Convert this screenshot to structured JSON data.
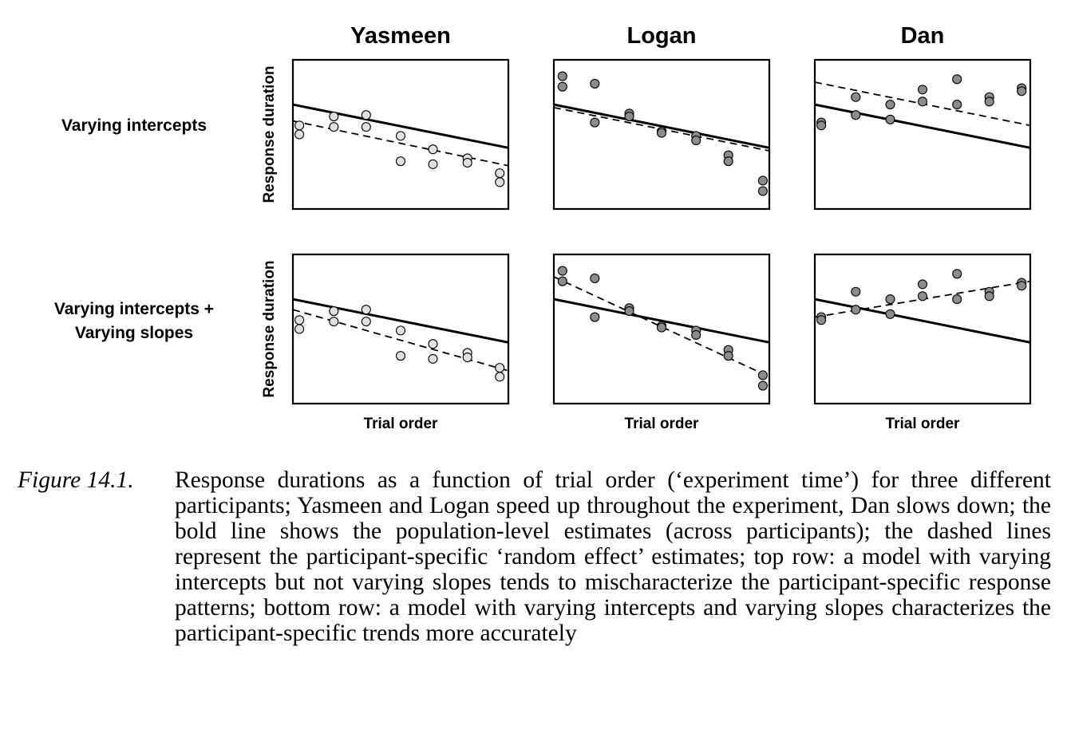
{
  "figure": {
    "columns": [
      "Yasmeen",
      "Logan",
      "Dan"
    ],
    "rows": [
      {
        "label_lines": [
          "Varying intercepts"
        ]
      },
      {
        "label_lines": [
          "Varying intercepts +",
          "Varying slopes"
        ]
      }
    ],
    "ylabel": "Response duration",
    "xlabel": "Trial order"
  },
  "caption": {
    "number": "Figure 14.1.",
    "text": "Response durations as a function of trial order (‘experiment time’) for three different participants; Yasmeen and Logan speed up throughout the experiment, Dan slows down; the bold line shows the population-level estimates (across participants); the dashed lines represent the participant-specific ‘random effect’ estimates; top row: a model with varying intercepts but not varying slopes tends to mischaracterize the participant-specific response patterns; bottom row: a model with varying intercepts and varying slopes characterizes the participant-specific trends more accurately"
  },
  "colors": {
    "Yasmeen": "#e0e0e0",
    "Logan": "#8c8c8c",
    "Dan": "#8c8c8c"
  },
  "chart_data": {
    "type": "scatter",
    "xlabel": "Trial order",
    "ylabel": "Response duration",
    "xlim": [
      0,
      1
    ],
    "ylim": [
      0,
      1
    ],
    "grid": false,
    "population_line": [
      [
        0,
        0.7
      ],
      [
        1,
        0.41
      ]
    ],
    "participants": {
      "Yasmeen": [
        [
          0.03,
          0.56
        ],
        [
          0.03,
          0.5
        ],
        [
          0.19,
          0.62
        ],
        [
          0.19,
          0.55
        ],
        [
          0.34,
          0.63
        ],
        [
          0.34,
          0.55
        ],
        [
          0.5,
          0.49
        ],
        [
          0.5,
          0.32
        ],
        [
          0.65,
          0.4
        ],
        [
          0.65,
          0.3
        ],
        [
          0.81,
          0.34
        ],
        [
          0.81,
          0.31
        ],
        [
          0.96,
          0.24
        ],
        [
          0.96,
          0.18
        ]
      ],
      "Logan": [
        [
          0.04,
          0.89
        ],
        [
          0.04,
          0.82
        ],
        [
          0.19,
          0.84
        ],
        [
          0.19,
          0.58
        ],
        [
          0.35,
          0.64
        ],
        [
          0.35,
          0.62
        ],
        [
          0.5,
          0.52
        ],
        [
          0.5,
          0.51
        ],
        [
          0.66,
          0.49
        ],
        [
          0.66,
          0.46
        ],
        [
          0.81,
          0.36
        ],
        [
          0.81,
          0.32
        ],
        [
          0.97,
          0.19
        ],
        [
          0.97,
          0.12
        ]
      ],
      "Dan": [
        [
          0.03,
          0.58
        ],
        [
          0.03,
          0.56
        ],
        [
          0.19,
          0.75
        ],
        [
          0.19,
          0.63
        ],
        [
          0.35,
          0.7
        ],
        [
          0.35,
          0.6
        ],
        [
          0.5,
          0.8
        ],
        [
          0.5,
          0.72
        ],
        [
          0.66,
          0.87
        ],
        [
          0.66,
          0.7
        ],
        [
          0.81,
          0.75
        ],
        [
          0.81,
          0.72
        ],
        [
          0.96,
          0.81
        ],
        [
          0.96,
          0.79
        ]
      ]
    },
    "panels": [
      {
        "row": "Varying intercepts",
        "participant": "Yasmeen",
        "dashed_line": [
          [
            0,
            0.59
          ],
          [
            1,
            0.29
          ]
        ]
      },
      {
        "row": "Varying intercepts",
        "participant": "Logan",
        "dashed_line": [
          [
            0,
            0.68
          ],
          [
            1,
            0.39
          ]
        ]
      },
      {
        "row": "Varying intercepts",
        "participant": "Dan",
        "dashed_line": [
          [
            0,
            0.85
          ],
          [
            1,
            0.56
          ]
        ]
      },
      {
        "row": "Varying intercepts + Varying slopes",
        "participant": "Yasmeen",
        "dashed_line": [
          [
            0,
            0.63
          ],
          [
            1,
            0.22
          ]
        ]
      },
      {
        "row": "Varying intercepts + Varying slopes",
        "participant": "Logan",
        "dashed_line": [
          [
            0,
            0.85
          ],
          [
            1,
            0.18
          ]
        ]
      },
      {
        "row": "Varying intercepts + Varying slopes",
        "participant": "Dan",
        "dashed_line": [
          [
            0,
            0.58
          ],
          [
            1,
            0.82
          ]
        ]
      }
    ]
  }
}
